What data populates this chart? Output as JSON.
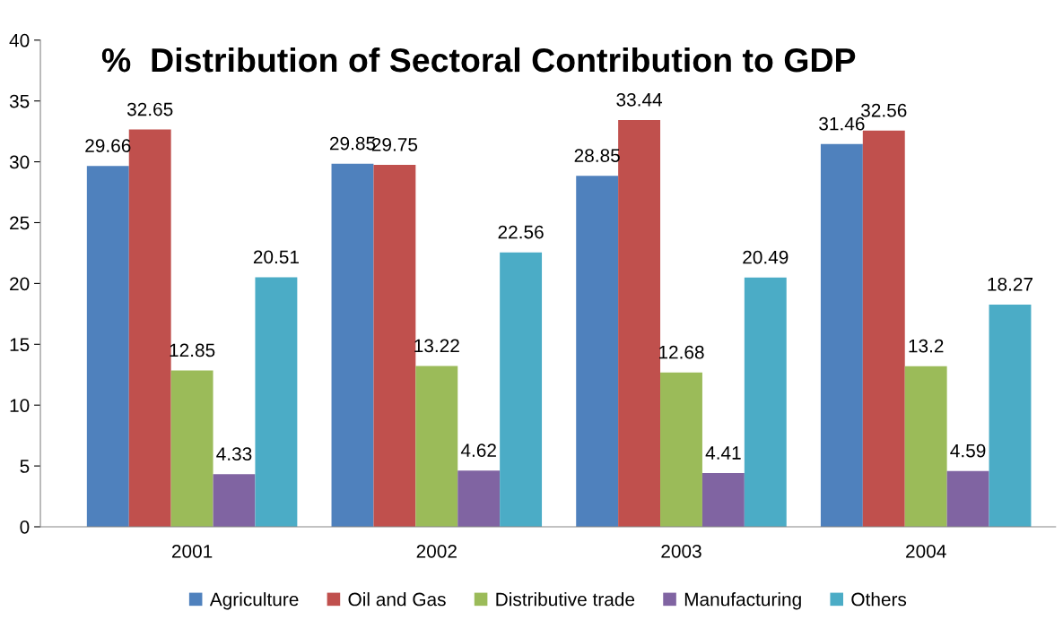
{
  "chart_data": {
    "type": "bar",
    "title": "%  Distribution of Sectoral Contribution to GDP",
    "categories": [
      "2001",
      "2002",
      "2003",
      "2004"
    ],
    "series": [
      {
        "name": "Agriculture",
        "color": "#4f81bd",
        "values": [
          29.66,
          29.85,
          28.85,
          31.46
        ]
      },
      {
        "name": "Oil and Gas",
        "color": "#c0504d",
        "values": [
          32.65,
          29.75,
          33.44,
          32.56
        ]
      },
      {
        "name": "Distributive trade",
        "color": "#9bbb59",
        "values": [
          12.85,
          13.22,
          12.68,
          13.2
        ]
      },
      {
        "name": "Manufacturing",
        "color": "#8064a2",
        "values": [
          4.33,
          4.62,
          4.41,
          4.59
        ]
      },
      {
        "name": "Others",
        "color": "#4bacc6",
        "values": [
          20.51,
          22.56,
          20.49,
          18.27
        ]
      }
    ],
    "ylim": [
      0,
      40
    ],
    "yticks": [
      0,
      5,
      10,
      15,
      20,
      25,
      30,
      35,
      40
    ],
    "data_labels": true,
    "legend": "bottom",
    "grid": false
  }
}
